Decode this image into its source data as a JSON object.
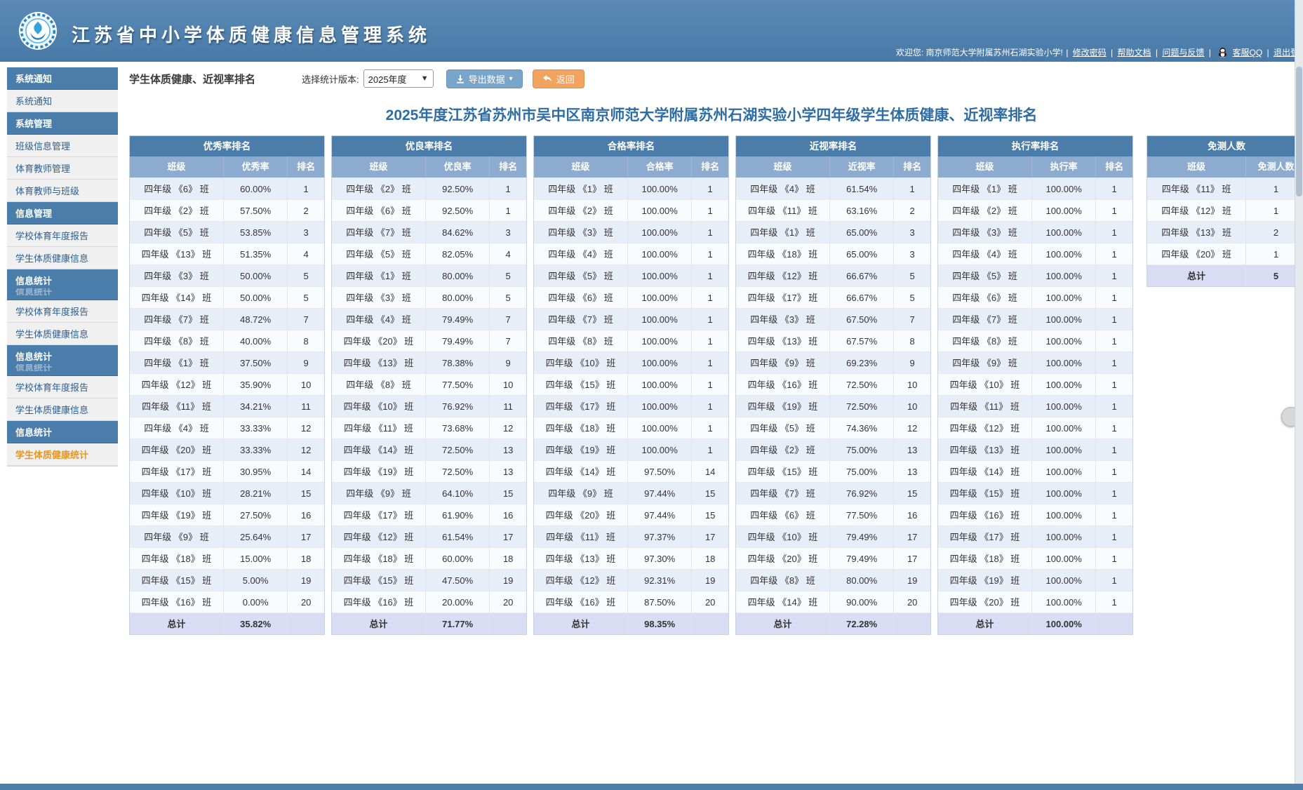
{
  "colors": {
    "header_blue": "#4b7dab",
    "column_header_blue": "#8cabce",
    "row_alt_blue": "#e8eef7",
    "total_row_lavender": "#d9dcf3",
    "title_blue": "#2e6da4",
    "export_button_blue": "#7aa5cb",
    "back_button_orange": "#f0a45f",
    "active_menu_orange": "#e8951f"
  },
  "header": {
    "app_title": "江苏省中小学体质健康信息管理系统",
    "welcome_prefix": "欢迎您: 南京师范大学附属苏州石湖实验小学!",
    "sep": "|",
    "links": [
      "修改密码",
      "帮助文档",
      "问题与反馈",
      "客服QQ",
      "退出登录"
    ]
  },
  "sidebar": {
    "items": [
      {
        "label": "系统通知",
        "type": "header",
        "name": "system-notice"
      },
      {
        "label": "系统通知",
        "type": "item",
        "name": "system-notice"
      },
      {
        "label": "系统管理",
        "type": "header",
        "name": "system-management"
      },
      {
        "label": "班级信息管理",
        "type": "item",
        "name": "class-info-management"
      },
      {
        "label": "体育教师管理",
        "type": "item",
        "name": "pe-teacher-management"
      },
      {
        "label": "体育教师与班级",
        "type": "item",
        "name": "pe-teacher-class"
      },
      {
        "label": "信息管理",
        "type": "header",
        "name": "info-management"
      },
      {
        "label": "学校体育年度报告",
        "type": "item",
        "name": "school-pe-annual-report"
      },
      {
        "label": "学生体质健康信息",
        "type": "item",
        "name": "student-fitness-info"
      },
      {
        "label": "信息统计",
        "type": "header",
        "name": "info-statistics",
        "ghost": true
      },
      {
        "label": "学校体育年度报告",
        "type": "item",
        "name": "school-pe-annual-report"
      },
      {
        "label": "学生体质健康信息",
        "type": "item",
        "name": "student-fitness-info"
      },
      {
        "label": "信息统计",
        "type": "header",
        "name": "info-statistics",
        "ghost": true
      },
      {
        "label": "学校体育年度报告",
        "type": "item",
        "name": "school-pe-annual-report"
      },
      {
        "label": "学生体质健康信息",
        "type": "item",
        "name": "student-fitness-info"
      },
      {
        "label": "信息统计",
        "type": "header",
        "name": "info-statistics"
      },
      {
        "label": "学生体质健康统计",
        "type": "item",
        "name": "student-fitness-statistics",
        "active": true
      }
    ]
  },
  "toolbar": {
    "page_subtitle": "学生体质健康、近视率排名",
    "version_label": "选择统计版本:",
    "version_value": "2025年度",
    "export_label": "导出数据",
    "back_label": "返回"
  },
  "main": {
    "title": "2025年度江苏省苏州市吴中区南京师范大学附属苏州石湖实验小学四年级学生体质健康、近视率排名"
  },
  "tables": [
    {
      "title": "优秀率排名",
      "columns": [
        "班级",
        "优秀率",
        "排名"
      ],
      "rows": [
        [
          "四年级 《6》 班",
          "60.00%",
          "1"
        ],
        [
          "四年级 《2》 班",
          "57.50%",
          "2"
        ],
        [
          "四年级 《5》 班",
          "53.85%",
          "3"
        ],
        [
          "四年级 《13》 班",
          "51.35%",
          "4"
        ],
        [
          "四年级 《3》 班",
          "50.00%",
          "5"
        ],
        [
          "四年级 《14》 班",
          "50.00%",
          "5"
        ],
        [
          "四年级 《7》 班",
          "48.72%",
          "7"
        ],
        [
          "四年级 《8》 班",
          "40.00%",
          "8"
        ],
        [
          "四年级 《1》 班",
          "37.50%",
          "9"
        ],
        [
          "四年级 《12》 班",
          "35.90%",
          "10"
        ],
        [
          "四年级 《11》 班",
          "34.21%",
          "11"
        ],
        [
          "四年级 《4》 班",
          "33.33%",
          "12"
        ],
        [
          "四年级 《20》 班",
          "33.33%",
          "12"
        ],
        [
          "四年级 《17》 班",
          "30.95%",
          "14"
        ],
        [
          "四年级 《10》 班",
          "28.21%",
          "15"
        ],
        [
          "四年级 《19》 班",
          "27.50%",
          "16"
        ],
        [
          "四年级 《9》 班",
          "25.64%",
          "17"
        ],
        [
          "四年级 《18》 班",
          "15.00%",
          "18"
        ],
        [
          "四年级 《15》 班",
          "5.00%",
          "19"
        ],
        [
          "四年级 《16》 班",
          "0.00%",
          "20"
        ]
      ],
      "total": [
        "总计",
        "35.82%",
        ""
      ]
    },
    {
      "title": "优良率排名",
      "columns": [
        "班级",
        "优良率",
        "排名"
      ],
      "rows": [
        [
          "四年级 《2》 班",
          "92.50%",
          "1"
        ],
        [
          "四年级 《6》 班",
          "92.50%",
          "1"
        ],
        [
          "四年级 《7》 班",
          "84.62%",
          "3"
        ],
        [
          "四年级 《5》 班",
          "82.05%",
          "4"
        ],
        [
          "四年级 《1》 班",
          "80.00%",
          "5"
        ],
        [
          "四年级 《3》 班",
          "80.00%",
          "5"
        ],
        [
          "四年级 《4》 班",
          "79.49%",
          "7"
        ],
        [
          "四年级 《20》 班",
          "79.49%",
          "7"
        ],
        [
          "四年级 《13》 班",
          "78.38%",
          "9"
        ],
        [
          "四年级 《8》 班",
          "77.50%",
          "10"
        ],
        [
          "四年级 《10》 班",
          "76.92%",
          "11"
        ],
        [
          "四年级 《11》 班",
          "73.68%",
          "12"
        ],
        [
          "四年级 《14》 班",
          "72.50%",
          "13"
        ],
        [
          "四年级 《19》 班",
          "72.50%",
          "13"
        ],
        [
          "四年级 《9》 班",
          "64.10%",
          "15"
        ],
        [
          "四年级 《17》 班",
          "61.90%",
          "16"
        ],
        [
          "四年级 《12》 班",
          "61.54%",
          "17"
        ],
        [
          "四年级 《18》 班",
          "60.00%",
          "18"
        ],
        [
          "四年级 《15》 班",
          "47.50%",
          "19"
        ],
        [
          "四年级 《16》 班",
          "20.00%",
          "20"
        ]
      ],
      "total": [
        "总计",
        "71.77%",
        ""
      ]
    },
    {
      "title": "合格率排名",
      "columns": [
        "班级",
        "合格率",
        "排名"
      ],
      "rows": [
        [
          "四年级 《1》 班",
          "100.00%",
          "1"
        ],
        [
          "四年级 《2》 班",
          "100.00%",
          "1"
        ],
        [
          "四年级 《3》 班",
          "100.00%",
          "1"
        ],
        [
          "四年级 《4》 班",
          "100.00%",
          "1"
        ],
        [
          "四年级 《5》 班",
          "100.00%",
          "1"
        ],
        [
          "四年级 《6》 班",
          "100.00%",
          "1"
        ],
        [
          "四年级 《7》 班",
          "100.00%",
          "1"
        ],
        [
          "四年级 《8》 班",
          "100.00%",
          "1"
        ],
        [
          "四年级 《10》 班",
          "100.00%",
          "1"
        ],
        [
          "四年级 《15》 班",
          "100.00%",
          "1"
        ],
        [
          "四年级 《17》 班",
          "100.00%",
          "1"
        ],
        [
          "四年级 《18》 班",
          "100.00%",
          "1"
        ],
        [
          "四年级 《19》 班",
          "100.00%",
          "1"
        ],
        [
          "四年级 《14》 班",
          "97.50%",
          "14"
        ],
        [
          "四年级 《9》 班",
          "97.44%",
          "15"
        ],
        [
          "四年级 《20》 班",
          "97.44%",
          "15"
        ],
        [
          "四年级 《11》 班",
          "97.37%",
          "17"
        ],
        [
          "四年级 《13》 班",
          "97.30%",
          "18"
        ],
        [
          "四年级 《12》 班",
          "92.31%",
          "19"
        ],
        [
          "四年级 《16》 班",
          "87.50%",
          "20"
        ]
      ],
      "total": [
        "总计",
        "98.35%",
        ""
      ]
    },
    {
      "title": "近视率排名",
      "columns": [
        "班级",
        "近视率",
        "排名"
      ],
      "rows": [
        [
          "四年级 《4》 班",
          "61.54%",
          "1"
        ],
        [
          "四年级 《11》 班",
          "63.16%",
          "2"
        ],
        [
          "四年级 《1》 班",
          "65.00%",
          "3"
        ],
        [
          "四年级 《18》 班",
          "65.00%",
          "3"
        ],
        [
          "四年级 《12》 班",
          "66.67%",
          "5"
        ],
        [
          "四年级 《17》 班",
          "66.67%",
          "5"
        ],
        [
          "四年级 《3》 班",
          "67.50%",
          "7"
        ],
        [
          "四年级 《13》 班",
          "67.57%",
          "8"
        ],
        [
          "四年级 《9》 班",
          "69.23%",
          "9"
        ],
        [
          "四年级 《16》 班",
          "72.50%",
          "10"
        ],
        [
          "四年级 《19》 班",
          "72.50%",
          "10"
        ],
        [
          "四年级 《5》 班",
          "74.36%",
          "12"
        ],
        [
          "四年级 《2》 班",
          "75.00%",
          "13"
        ],
        [
          "四年级 《15》 班",
          "75.00%",
          "13"
        ],
        [
          "四年级 《7》 班",
          "76.92%",
          "15"
        ],
        [
          "四年级 《6》 班",
          "77.50%",
          "16"
        ],
        [
          "四年级 《10》 班",
          "79.49%",
          "17"
        ],
        [
          "四年级 《20》 班",
          "79.49%",
          "17"
        ],
        [
          "四年级 《8》 班",
          "80.00%",
          "19"
        ],
        [
          "四年级 《14》 班",
          "90.00%",
          "20"
        ]
      ],
      "total": [
        "总计",
        "72.28%",
        ""
      ]
    },
    {
      "title": "执行率排名",
      "columns": [
        "班级",
        "执行率",
        "排名"
      ],
      "rows": [
        [
          "四年级 《1》 班",
          "100.00%",
          "1"
        ],
        [
          "四年级 《2》 班",
          "100.00%",
          "1"
        ],
        [
          "四年级 《3》 班",
          "100.00%",
          "1"
        ],
        [
          "四年级 《4》 班",
          "100.00%",
          "1"
        ],
        [
          "四年级 《5》 班",
          "100.00%",
          "1"
        ],
        [
          "四年级 《6》 班",
          "100.00%",
          "1"
        ],
        [
          "四年级 《7》 班",
          "100.00%",
          "1"
        ],
        [
          "四年级 《8》 班",
          "100.00%",
          "1"
        ],
        [
          "四年级 《9》 班",
          "100.00%",
          "1"
        ],
        [
          "四年级 《10》 班",
          "100.00%",
          "1"
        ],
        [
          "四年级 《11》 班",
          "100.00%",
          "1"
        ],
        [
          "四年级 《12》 班",
          "100.00%",
          "1"
        ],
        [
          "四年级 《13》 班",
          "100.00%",
          "1"
        ],
        [
          "四年级 《14》 班",
          "100.00%",
          "1"
        ],
        [
          "四年级 《15》 班",
          "100.00%",
          "1"
        ],
        [
          "四年级 《16》 班",
          "100.00%",
          "1"
        ],
        [
          "四年级 《17》 班",
          "100.00%",
          "1"
        ],
        [
          "四年级 《18》 班",
          "100.00%",
          "1"
        ],
        [
          "四年级 《19》 班",
          "100.00%",
          "1"
        ],
        [
          "四年级 《20》 班",
          "100.00%",
          "1"
        ]
      ],
      "total": [
        "总计",
        "100.00%",
        ""
      ]
    },
    {
      "title": "免测人数",
      "columns": [
        "班级",
        "免测人数"
      ],
      "rows": [
        [
          "四年级 《11》 班",
          "1"
        ],
        [
          "四年级 《12》 班",
          "1"
        ],
        [
          "四年级 《13》 班",
          "2"
        ],
        [
          "四年级 《20》 班",
          "1"
        ]
      ],
      "total": [
        "总计",
        "5"
      ]
    }
  ]
}
